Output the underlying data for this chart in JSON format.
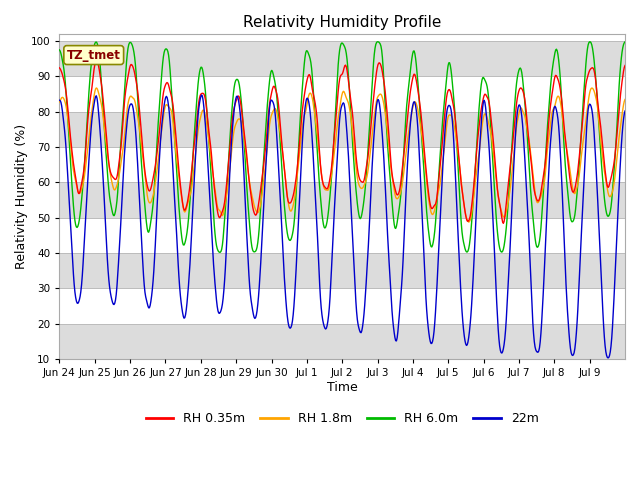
{
  "title": "Relativity Humidity Profile",
  "xlabel": "Time",
  "ylabel": "Relativity Humidity (%)",
  "ylim": [
    10,
    102
  ],
  "yticks": [
    10,
    20,
    30,
    40,
    50,
    60,
    70,
    80,
    90,
    100
  ],
  "legend_labels": [
    "RH 0.35m",
    "RH 1.8m",
    "RH 6.0m",
    "22m"
  ],
  "colors": {
    "rh035": "#FF0000",
    "rh18": "#FFA500",
    "rh60": "#00BB00",
    "m22": "#0000CC"
  },
  "annotation": "TZ_tmet",
  "annotation_color": "#880000",
  "annotation_bg": "#FFFFCC",
  "annotation_edge": "#888800",
  "bg_color": "#FFFFFF",
  "grid_color": "#BBBBBB",
  "alt_bg_color": "#DCDCDC",
  "n_days": 16,
  "xtick_labels": [
    "Jun 24",
    "Jun 25",
    "Jun 26",
    "Jun 27",
    "Jun 28",
    "Jun 29",
    "Jun 30",
    "Jul 1",
    "Jul 2",
    "Jul 3",
    "Jul 4",
    "Jul 5",
    "Jul 6",
    "Jul 7",
    "Jul 8",
    "Jul 9"
  ],
  "line_width": 1.0
}
